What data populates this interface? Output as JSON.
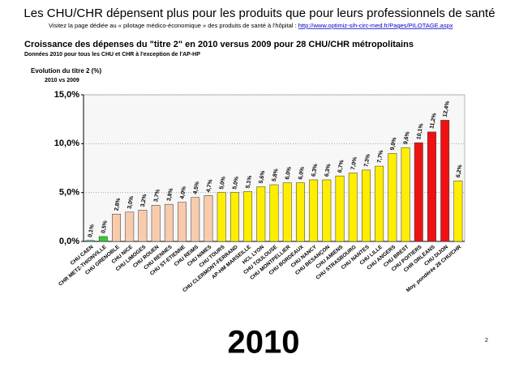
{
  "slide_title": "Les CHU/CHR dépensent plus pour les produits que pour leurs professionnels de santé",
  "slide_subtitle": "Visitez la page dédiée au « pilotage médico-économique » des produits de santé à l'hôpital : ",
  "slide_link": "http://www.optimiz-sih-circ-med.fr/Pages/PILOTAGE.aspx",
  "year_label": "2010",
  "page_number": "2",
  "chart_data": {
    "type": "bar",
    "title": "Croissance des dépenses du \"titre 2\" en 2010 versus 2009 pour 28 CHU/CHR métropolitains",
    "note": "Données  2010 pour tous les CHU et CHR à l'exception de l'AP-HP",
    "y_label": "Evolution du titre 2 (%)",
    "y_sublabel": "2010 vs 2009",
    "categories": [
      "CHU CAEN",
      "CHR METZ-THIONVILLE",
      "CHU GRENOBLE",
      "CHU NICE",
      "CHU LIMOGES",
      "CHU ROUEN",
      "CHU RENNES",
      "CHU ST-ETIENNE",
      "CHU REIMS",
      "CHU NIMES",
      "CHU TOURS",
      "CHU CLERMONT-FERRAND",
      "AP-HM MARSEILLE",
      "HCL LYON",
      "CHU TOULOUSE",
      "CHU MONTPELLIER",
      "CHU BORDEAUX",
      "CHU NANCY",
      "CHU BESANÇON",
      "CHU AMIENS",
      "CHU STRASBOURG",
      "CHU NANTES",
      "CHU LILLE",
      "CHU ANGERS",
      "CHU BREST",
      "CHU POITIERS",
      "CHR ORLEANS",
      "CHU DIJON",
      "Moy. pondérée 28 CHU/CHR"
    ],
    "values": [
      0.1,
      0.5,
      2.8,
      3.0,
      3.2,
      3.7,
      3.8,
      4.0,
      4.5,
      4.7,
      5.0,
      5.0,
      5.1,
      5.6,
      5.8,
      6.0,
      6.0,
      6.3,
      6.3,
      6.7,
      7.0,
      7.3,
      7.7,
      9.0,
      9.6,
      10.1,
      11.2,
      12.4,
      6.2
    ],
    "value_labels": [
      "0,1%",
      "0,5%",
      "2,8%",
      "3,0%",
      "3,2%",
      "3,7%",
      "3,8%",
      "4,0%",
      "4,5%",
      "4,7%",
      "5,0%",
      "5,0%",
      "5,1%",
      "5,6%",
      "5,8%",
      "6,0%",
      "6,0%",
      "6,3%",
      "6,3%",
      "6,7%",
      "7,0%",
      "7,3%",
      "7,7%",
      "9,0%",
      "9,6%",
      "10,1%",
      "11,2%",
      "12,4%",
      "6,2%"
    ],
    "colors": [
      "#33cccc",
      "#33cc33",
      "#f8cbad",
      "#f8cbad",
      "#f8cbad",
      "#f8cbad",
      "#f8cbad",
      "#f8cbad",
      "#f8cbad",
      "#f8cbad",
      "#ffee00",
      "#ffee00",
      "#ffee00",
      "#ffee00",
      "#ffee00",
      "#ffee00",
      "#ffee00",
      "#ffee00",
      "#ffee00",
      "#ffee00",
      "#ffee00",
      "#ffee00",
      "#ffee00",
      "#ffee00",
      "#ffee00",
      "#ee1111",
      "#ee1111",
      "#ee1111",
      "#ffee00"
    ],
    "ylim": [
      0,
      15
    ],
    "yticks": [
      {
        "value": 0,
        "label": "0,0%"
      },
      {
        "value": 5,
        "label": "5,0%"
      },
      {
        "value": 10,
        "label": "10,0%"
      },
      {
        "value": 15,
        "label": "15,0%"
      }
    ],
    "grid": true
  }
}
